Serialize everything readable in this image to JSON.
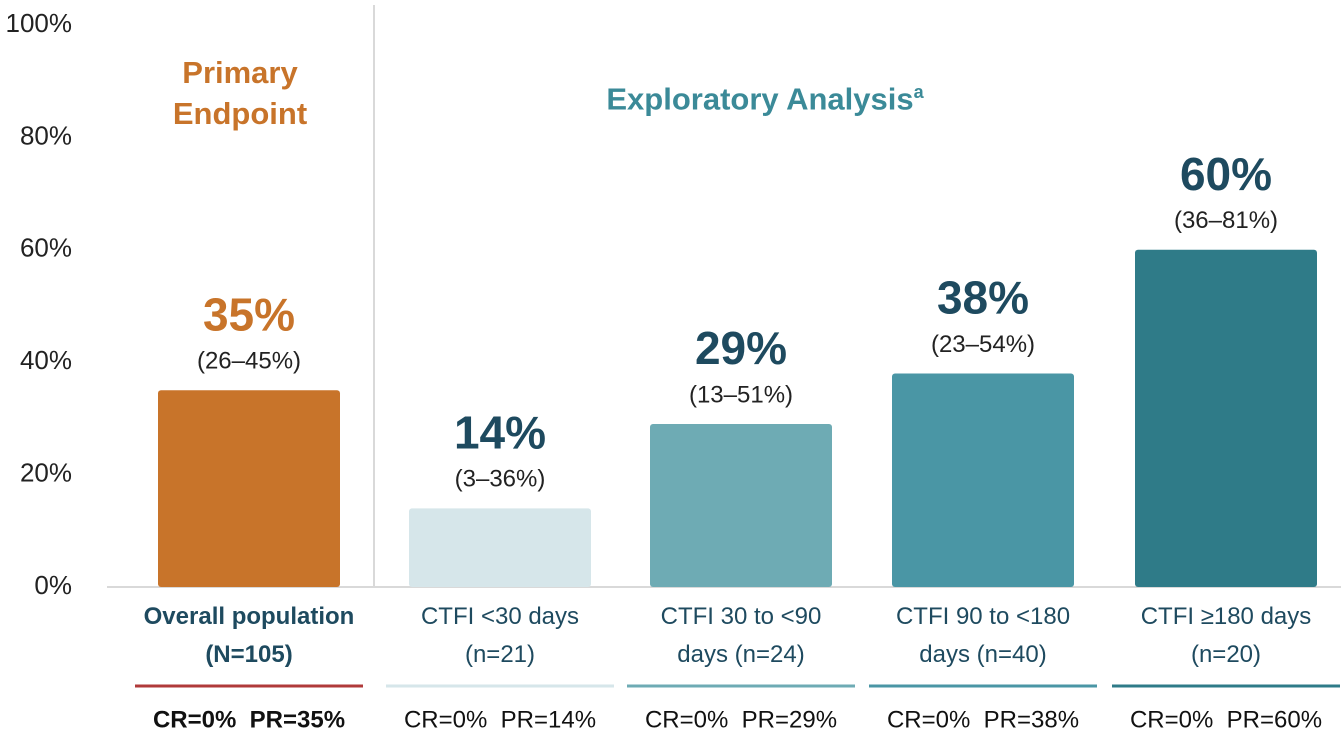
{
  "chart_data": {
    "type": "bar",
    "categories": [
      "Overall population\n(N=105)",
      "CTFI <30 days\n(n=21)",
      "CTFI 30 to <90\ndays (n=24)",
      "CTFI 90 to <180\ndays (n=40)",
      "CTFI ≥180 days\n(n=20)"
    ],
    "values": [
      35,
      14,
      29,
      38,
      60
    ],
    "value_labels": [
      "35%",
      "14%",
      "29%",
      "38%",
      "60%"
    ],
    "interval_labels": [
      "(26–45%)",
      "(3–36%)",
      "(13–51%)",
      "(23–54%)",
      "(36–81%)"
    ],
    "response_labels": [
      "CR=0%  PR=35%",
      "CR=0%  PR=14%",
      "CR=0%  PR=29%",
      "CR=0%  PR=38%",
      "CR=0%  PR=60%"
    ],
    "colors": [
      "#c8742a",
      "#d6e6ea",
      "#6eabb4",
      "#4a96a5",
      "#2f7b88"
    ],
    "underline_colors": [
      "#b03a3a",
      "#d6e6ea",
      "#6eabb4",
      "#4a96a5",
      "#2f7b88"
    ],
    "annotations": [
      {
        "text": "Primary\nEndpoint"
      },
      {
        "text": "Exploratory Analysis",
        "superscript": "a"
      }
    ],
    "ylim": [
      0,
      100
    ],
    "yticks": [
      {
        "value": 0,
        "label": "0%"
      },
      {
        "value": 20,
        "label": "20%"
      },
      {
        "value": 40,
        "label": "40%"
      },
      {
        "value": 60,
        "label": "60%"
      },
      {
        "value": 80,
        "label": "80%"
      },
      {
        "value": 100,
        "label": "100%"
      }
    ],
    "grid": false
  }
}
